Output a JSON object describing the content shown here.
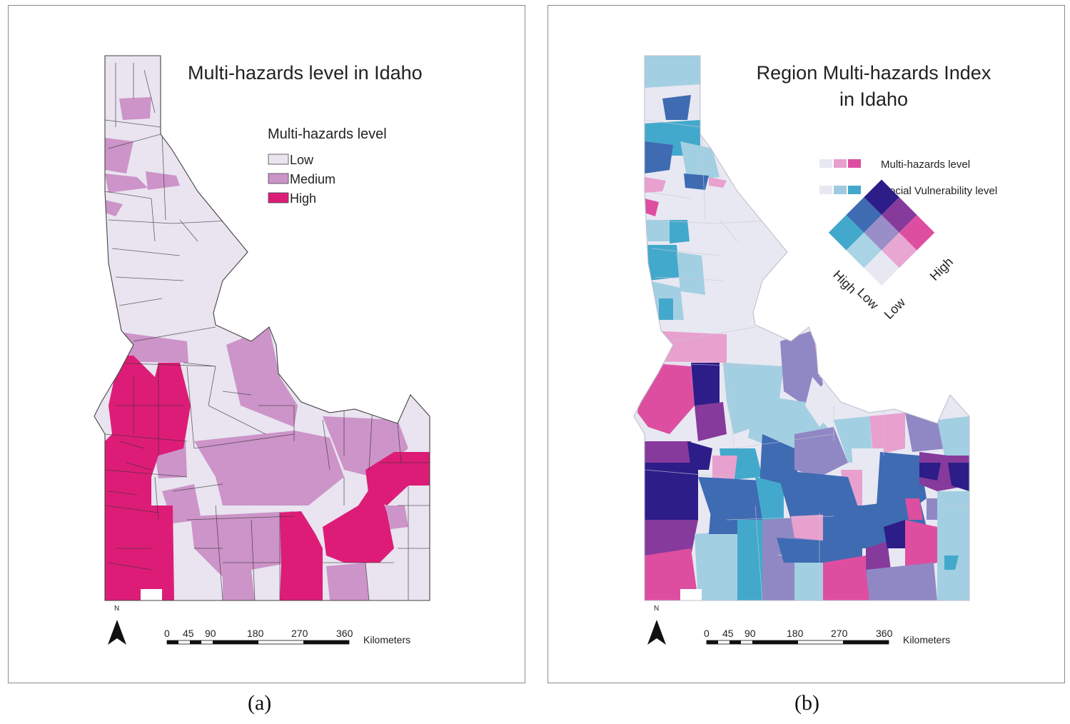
{
  "panel_a": {
    "caption": "(a)",
    "title": "Multi-hazards level in Idaho",
    "legend": {
      "title": "Multi-hazards level",
      "items": [
        {
          "label": "Low",
          "color": "#e9e4f0"
        },
        {
          "label": "Medium",
          "color": "#cc94c8"
        },
        {
          "label": "High",
          "color": "#dd1c77"
        }
      ]
    },
    "north_label": "N",
    "scale": {
      "ticks": [
        "0",
        "45",
        "90",
        "180",
        "270",
        "360"
      ],
      "unit": "Kilometers"
    }
  },
  "panel_b": {
    "caption": "(b)",
    "title_line1": "Region Multi-hazards Index",
    "title_line2": "in Idaho",
    "legend": {
      "hazard_label": "Multi-hazards level",
      "hazard_colors": [
        "#e8e8f2",
        "#e89fcf",
        "#de4ea0"
      ],
      "social_label": "Social Vulnerability level",
      "social_colors": [
        "#e8e8f2",
        "#9fcbe0",
        "#43a9cc"
      ],
      "matrix_colors": [
        [
          "#e8e8f2",
          "#a9d4e6",
          "#43a9cc"
        ],
        [
          "#e8a6d2",
          "#9a8ec8",
          "#3f6bb3"
        ],
        [
          "#de4ea0",
          "#863a9b",
          "#2c1d88"
        ]
      ],
      "hazard_high": "High",
      "hazard_low": "Low",
      "social_low": "Low",
      "social_high": "High"
    },
    "north_label": "N",
    "scale": {
      "ticks": [
        "0",
        "45",
        "90",
        "180",
        "270",
        "360"
      ],
      "unit": "Kilometers"
    }
  },
  "colors": {
    "low": "#e9e4f0",
    "medium": "#cc94c8",
    "high": "#dd1c77",
    "b_lowlow": "#e8e8f2",
    "b_lightblue": "#a3cfe2",
    "b_blue": "#43a9cc",
    "b_pinklight": "#e8a0cf",
    "b_pink": "#de4ea0",
    "b_lavender": "#9088c4",
    "b_midblue": "#3f6bb3",
    "b_purple": "#863a9b",
    "b_navy": "#2c1d88"
  }
}
